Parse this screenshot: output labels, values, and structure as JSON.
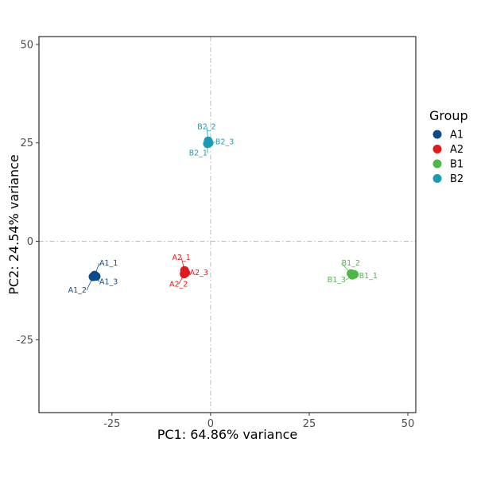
{
  "chart_data": {
    "type": "scatter",
    "title": "",
    "xlabel": "PC1: 64.86% variance",
    "ylabel": "PC2: 24.54% variance",
    "xlim": [
      -43.5,
      52
    ],
    "ylim": [
      -43.5,
      52
    ],
    "xticks": [
      -25,
      0,
      25,
      50
    ],
    "yticks": [
      -25,
      0,
      25,
      50
    ],
    "tick_labels_x": [
      "-25",
      "0",
      "25",
      "50"
    ],
    "tick_labels_y": [
      "-25",
      "0",
      "25",
      "50"
    ],
    "reference_lines": {
      "x": 0,
      "y": 0,
      "style": "dashdot"
    },
    "grid": false,
    "legend": {
      "title": "Group",
      "position": "right",
      "items": [
        {
          "name": "A1",
          "color": "#0d4a8a"
        },
        {
          "name": "A2",
          "color": "#e01b1b"
        },
        {
          "name": "B1",
          "color": "#4db848"
        },
        {
          "name": "B2",
          "color": "#1a9bb3"
        }
      ]
    },
    "series": [
      {
        "name": "A1",
        "color": "#0d4a8a",
        "points": [
          {
            "label": "A1_1",
            "x": -29.4,
            "y": -8.6
          },
          {
            "label": "A1_2",
            "x": -29.8,
            "y": -9.0
          },
          {
            "label": "A1_3",
            "x": -29.0,
            "y": -8.9
          }
        ]
      },
      {
        "name": "A2",
        "color": "#e01b1b",
        "points": [
          {
            "label": "A2_1",
            "x": -6.6,
            "y": -7.4
          },
          {
            "label": "A2_2",
            "x": -6.7,
            "y": -8.3
          },
          {
            "label": "A2_3",
            "x": -6.3,
            "y": -8.0
          }
        ]
      },
      {
        "name": "B1",
        "color": "#4db848",
        "points": [
          {
            "label": "B1_2",
            "x": 35.6,
            "y": -8.2
          },
          {
            "label": "B1_3",
            "x": 35.9,
            "y": -8.6
          },
          {
            "label": "B1_1",
            "x": 36.4,
            "y": -8.4
          }
        ]
      },
      {
        "name": "B2",
        "color": "#1a9bb3",
        "points": [
          {
            "label": "B2_2",
            "x": -0.6,
            "y": 25.5
          },
          {
            "label": "B2_1",
            "x": -0.8,
            "y": 24.8
          },
          {
            "label": "B2_3",
            "x": -0.4,
            "y": 25.0
          }
        ]
      }
    ]
  }
}
